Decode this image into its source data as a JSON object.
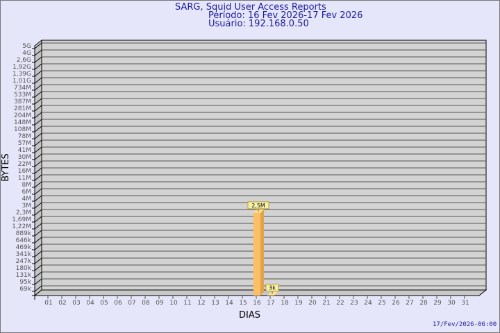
{
  "chart_data": {
    "type": "bar",
    "title": "SARG, Squid User Access Reports",
    "subtitle": [
      "Período: 16 Fev 2026-17 Fev 2026",
      "Usuário: 192.168.0.50"
    ],
    "xlabel": "DIAS",
    "ylabel": "BYTES",
    "y_scale": "log",
    "y_tick_labels": [
      "5G",
      "4G",
      "2,6G",
      "1,92G",
      "1,39G",
      "1,01G",
      "734M",
      "533M",
      "387M",
      "281M",
      "204M",
      "148M",
      "108M",
      "78M",
      "57M",
      "41M",
      "30M",
      "22M",
      "16M",
      "11M",
      "8M",
      "6M",
      "4M",
      "3M",
      "2,3M",
      "1,69M",
      "1,22M",
      "889k",
      "646k",
      "469k",
      "341k",
      "247k",
      "180k",
      "131k",
      "95k",
      "69k"
    ],
    "categories": [
      "01",
      "02",
      "03",
      "04",
      "05",
      "06",
      "07",
      "08",
      "09",
      "10",
      "11",
      "12",
      "13",
      "14",
      "15",
      "16",
      "17",
      "18",
      "19",
      "20",
      "21",
      "22",
      "23",
      "24",
      "25",
      "26",
      "27",
      "28",
      "29",
      "30",
      "31"
    ],
    "bars": [
      {
        "category": "16",
        "value": 2500000,
        "label": "2,5M"
      },
      {
        "category": "17",
        "value": 3000,
        "label": "3k"
      }
    ],
    "grid": true,
    "footer": "17/Fev/2026-06:00",
    "colors": {
      "bar": "#fbc064",
      "bar_side": "#e0a24c",
      "bar_top": "#ffe08a",
      "plot_bg": "#d3d3d3",
      "background": "#e6e6fa",
      "title": "#1a1a9c",
      "label_box": "#f8f0a8"
    }
  }
}
